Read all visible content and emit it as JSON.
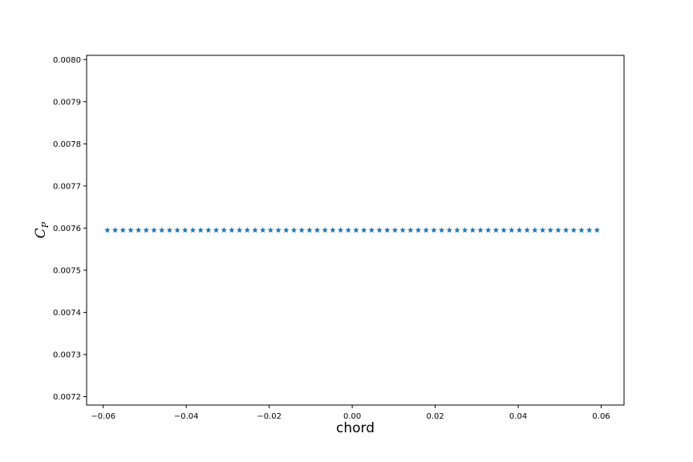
{
  "chart_data": {
    "type": "scatter",
    "title": "",
    "xlabel": "chord",
    "ylabel": "C",
    "ylabel_subscript": "P",
    "xlim": [
      -0.064,
      0.0655
    ],
    "ylim": [
      0.00718,
      0.00801
    ],
    "xticks": [
      -0.06,
      -0.04,
      -0.02,
      0.0,
      0.02,
      0.04,
      0.06
    ],
    "xtick_labels": [
      "−0.06",
      "−0.04",
      "−0.02",
      "0.00",
      "0.02",
      "0.04",
      "0.06"
    ],
    "yticks": [
      0.0072,
      0.0073,
      0.0074,
      0.0075,
      0.0076,
      0.0077,
      0.0078,
      0.0079,
      0.008
    ],
    "ytick_labels": [
      "0.0072",
      "0.0073",
      "0.0074",
      "0.0075",
      "0.0076",
      "0.0077",
      "0.0078",
      "0.0079",
      "0.0080"
    ],
    "grid": false,
    "marker": "star",
    "marker_color": "#1f77b4",
    "series": [
      {
        "x_start": -0.059,
        "x_end": 0.059,
        "count": 64,
        "y": 0.007595
      }
    ]
  }
}
